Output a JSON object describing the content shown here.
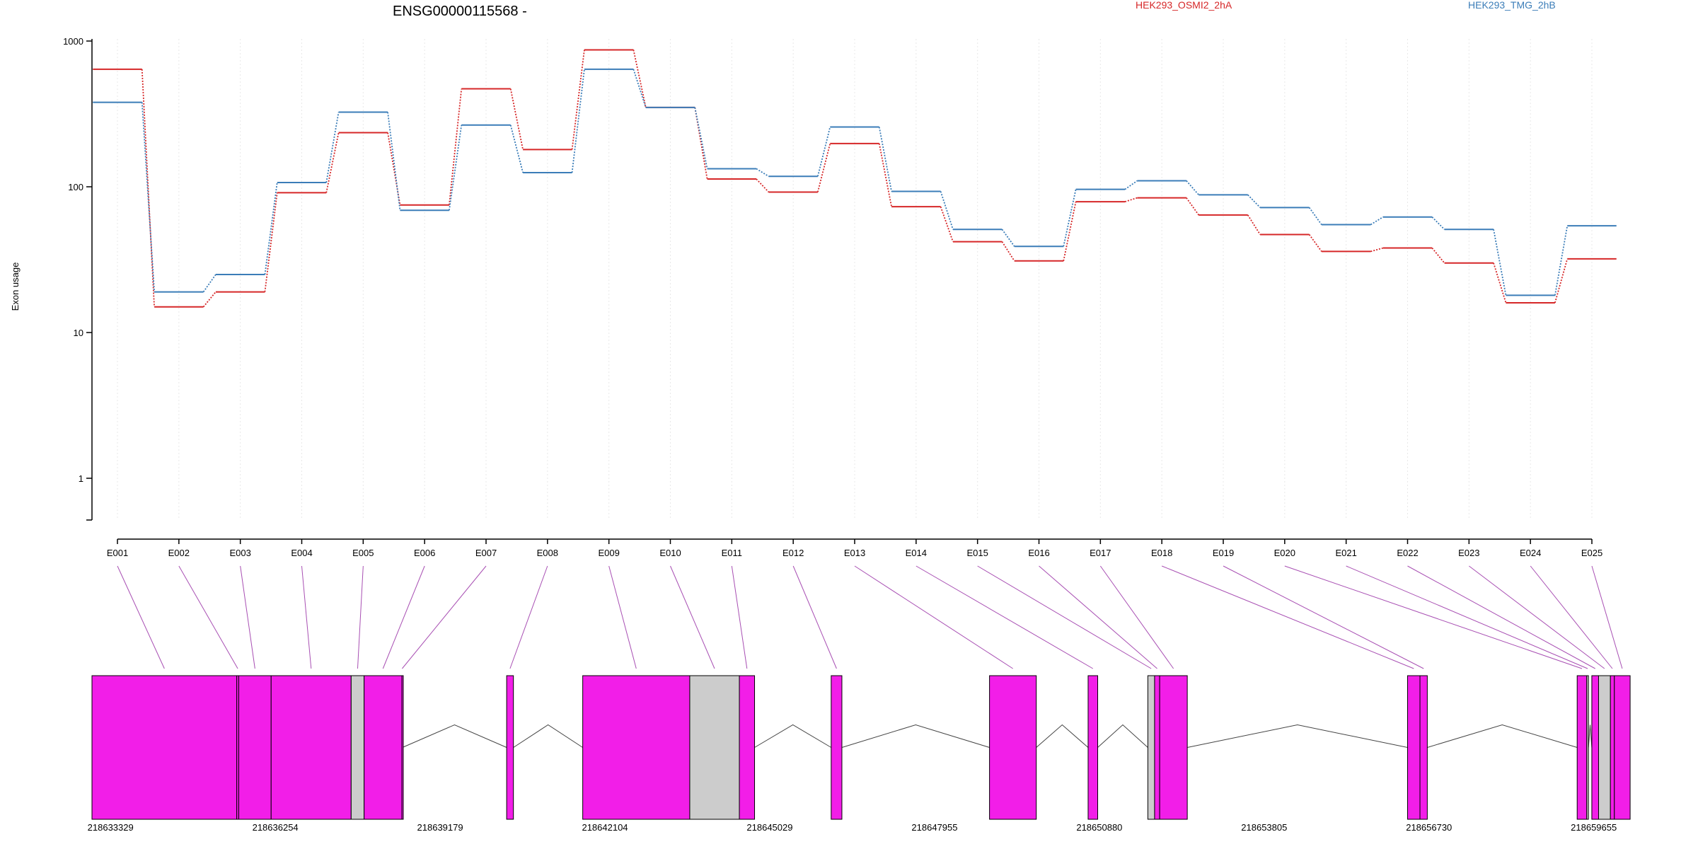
{
  "chart_data": {
    "type": "line",
    "title": "ENSG00000115568 -",
    "ylabel": "Exon usage",
    "y_scale": "log",
    "y_ticks": [
      "1",
      "10",
      "100",
      "1000"
    ],
    "ylim": [
      0.5,
      1000
    ],
    "grid": "vertical",
    "legend_position": "top-right",
    "categories": [
      "E001",
      "E002",
      "E003",
      "E004",
      "E005",
      "E006",
      "E007",
      "E008",
      "E009",
      "E010",
      "E011",
      "E012",
      "E013",
      "E014",
      "E015",
      "E016",
      "E017",
      "E018",
      "E019",
      "E020",
      "E021",
      "E022",
      "E023",
      "E024",
      "E025"
    ],
    "series": [
      {
        "name": "HEK293_OSMI2_2hA",
        "color": "#d62728",
        "values": [
          640,
          15,
          19,
          91,
          235,
          75,
          470,
          180,
          870,
          350,
          113,
          92,
          198,
          73,
          42,
          31,
          79,
          84,
          64,
          47,
          36,
          38,
          30,
          16,
          32
        ]
      },
      {
        "name": "HEK293_TMG_2hB",
        "color": "#3b7db8",
        "values": [
          380,
          19,
          25,
          107,
          325,
          69,
          265,
          125,
          640,
          350,
          133,
          118,
          257,
          93,
          51,
          39,
          96,
          110,
          88,
          72,
          55,
          62,
          51,
          18,
          54
        ]
      }
    ],
    "gene_model": {
      "x_range": [
        218633000,
        218660500
      ],
      "coordinate_labels": [
        "218633329",
        "218636254",
        "218639179",
        "218642104",
        "218645029",
        "218647955",
        "218650880",
        "218653805",
        "218656730",
        "218659655"
      ],
      "coordinate_values": [
        218633329,
        218636254,
        218639179,
        218642104,
        218645029,
        218647955,
        218650880,
        218653805,
        218656730,
        218659655
      ],
      "exons": [
        {
          "start": 218633000,
          "end": 218635570,
          "kind": "coding",
          "label": "E001"
        },
        {
          "start": 218635570,
          "end": 218635605,
          "kind": "coding",
          "label": "E002"
        },
        {
          "start": 218635605,
          "end": 218636180,
          "kind": "coding",
          "label": "E003"
        },
        {
          "start": 218636180,
          "end": 218637600,
          "kind": "coding",
          "label": "E004"
        },
        {
          "start": 218637600,
          "end": 218637830,
          "kind": "utr",
          "label": "E005"
        },
        {
          "start": 218637830,
          "end": 218638500,
          "kind": "coding",
          "label": "E006"
        },
        {
          "start": 218638500,
          "end": 218638510,
          "kind": "coding",
          "label": "E007"
        },
        {
          "start": 218640360,
          "end": 218640480,
          "kind": "coding",
          "label": "E008"
        },
        {
          "start": 218641710,
          "end": 218643610,
          "kind": "coding",
          "label": "E009"
        },
        {
          "start": 218643610,
          "end": 218644490,
          "kind": "utr",
          "label": "E010"
        },
        {
          "start": 218644490,
          "end": 218644760,
          "kind": "coding",
          "label": "E011"
        },
        {
          "start": 218646120,
          "end": 218646310,
          "kind": "coding",
          "label": "E012"
        },
        {
          "start": 218648930,
          "end": 218649760,
          "kind": "coding",
          "label": "E013"
        },
        {
          "start": 218650680,
          "end": 218650850,
          "kind": "coding",
          "label": "E014"
        },
        {
          "start": 218651740,
          "end": 218651860,
          "kind": "utr",
          "label": "E015"
        },
        {
          "start": 218651860,
          "end": 218651950,
          "kind": "coding",
          "label": "E016"
        },
        {
          "start": 218651950,
          "end": 218652440,
          "kind": "coding",
          "label": "E017"
        },
        {
          "start": 218656350,
          "end": 218656570,
          "kind": "coding",
          "label": "E018"
        },
        {
          "start": 218656570,
          "end": 218656700,
          "kind": "coding",
          "label": "E019"
        },
        {
          "start": 218659360,
          "end": 218659530,
          "kind": "coding",
          "label": "E020"
        },
        {
          "start": 218659530,
          "end": 218659560,
          "kind": "utr",
          "label": "E021"
        },
        {
          "start": 218659620,
          "end": 218659740,
          "kind": "coding",
          "label": "E022"
        },
        {
          "start": 218659740,
          "end": 218659950,
          "kind": "utr",
          "label": "E023"
        },
        {
          "start": 218659950,
          "end": 218660020,
          "kind": "coding",
          "label": "E024"
        },
        {
          "start": 218660020,
          "end": 218660300,
          "kind": "coding",
          "label": "E025"
        }
      ],
      "introns": [
        [
          218638510,
          218640360
        ],
        [
          218640480,
          218641710
        ],
        [
          218644760,
          218646120
        ],
        [
          218646310,
          218648930
        ],
        [
          218649760,
          218650680
        ],
        [
          218650850,
          218651740
        ],
        [
          218652440,
          218656350
        ],
        [
          218656700,
          218659360
        ],
        [
          218659560,
          218659620
        ],
        [
          218659620,
          218659740
        ]
      ]
    }
  },
  "colors": {
    "coding_exon": "#f21ee8",
    "utr_exon": "#cccccc",
    "connector": "#a84fb3",
    "grid": "#e8e8e8",
    "intron": "#444444"
  }
}
